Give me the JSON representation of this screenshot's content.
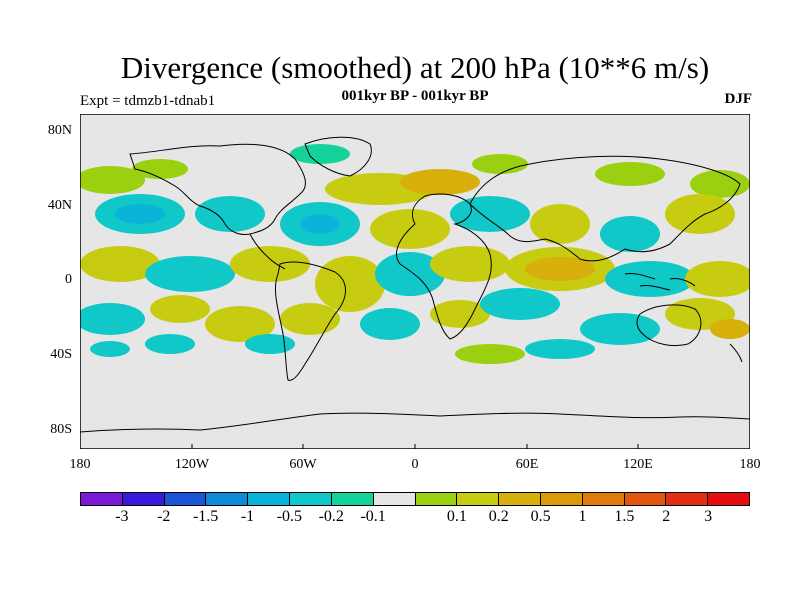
{
  "title": "Divergence (smoothed) at 200 hPa (10**6 m/s)",
  "subtitle": "001kyr BP - 001kyr BP",
  "expt": "Expt = tdmzb1-tdnab1",
  "season": "DJF",
  "axes": {
    "y_labels": [
      "80N",
      "40N",
      "0",
      "40S",
      "80S"
    ],
    "x_labels": [
      "180",
      "120W",
      "60W",
      "0",
      "60E",
      "120E",
      "180"
    ]
  },
  "colorbar": {
    "colors": [
      "#7a19d6",
      "#3a1ad8",
      "#1a56d6",
      "#0e8ad8",
      "#0ab4d8",
      "#10c8c8",
      "#14d29a",
      "#e6e6e6",
      "#9ad010",
      "#c8cc10",
      "#d8b00c",
      "#dc9a08",
      "#e07a0a",
      "#e25612",
      "#e42e14",
      "#e60c10"
    ],
    "labels": [
      "-3",
      "-2",
      "-1.5",
      "-1",
      "-0.5",
      "-0.2",
      "-0.1",
      "0.1",
      "0.2",
      "0.5",
      "1",
      "1.5",
      "2",
      "3"
    ]
  },
  "colors": {
    "background": "#e6e6e6",
    "cyan": "#10c8c8",
    "lightblue": "#0ab4d8",
    "green": "#14d29a",
    "lime": "#9ad010",
    "olive": "#c8cc10",
    "orange": "#d8b00c",
    "deeporange": "#dc9a08"
  }
}
